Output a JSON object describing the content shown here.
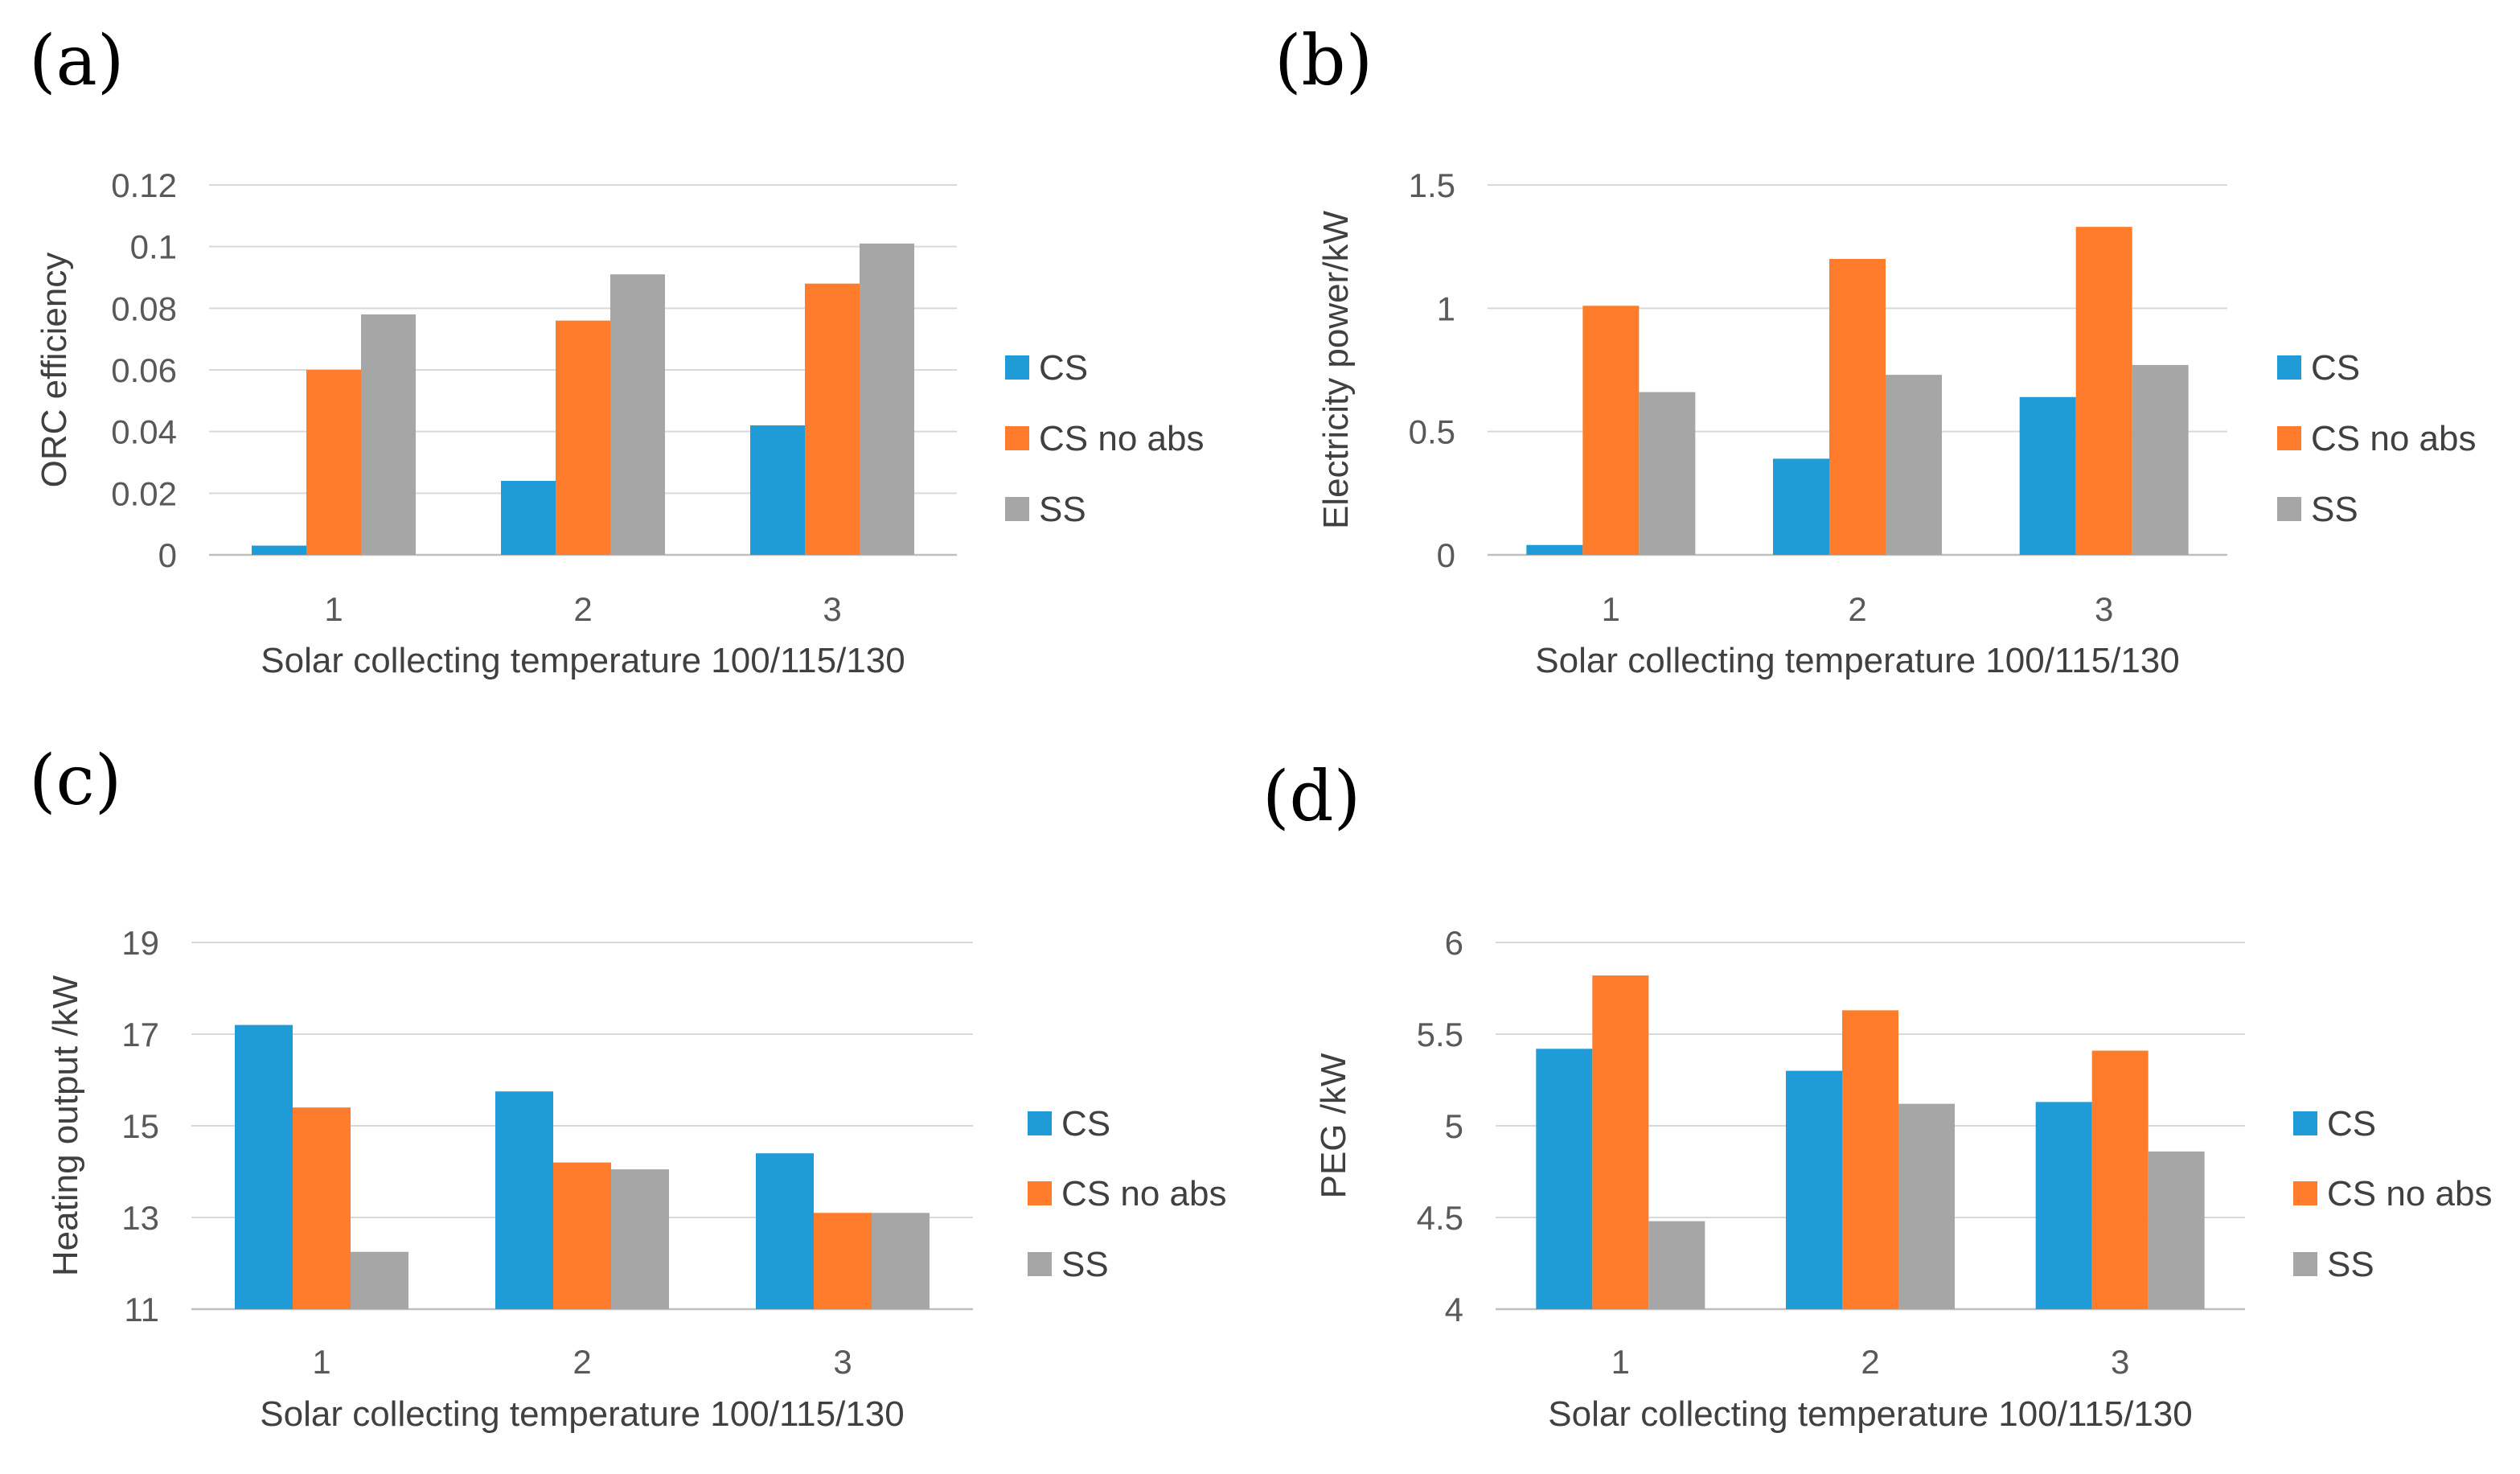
{
  "series_colors": {
    "CS": "#1f9bd7",
    "CS no abs": "#fe7c2b",
    "SS": "#a6a6a6"
  },
  "chart_data": [
    {
      "id": "a",
      "panel_label": "(a)",
      "type": "bar",
      "categories": [
        "1",
        "2",
        "3"
      ],
      "series": [
        {
          "name": "CS",
          "values": [
            0.003,
            0.024,
            0.042
          ]
        },
        {
          "name": "CS no abs",
          "values": [
            0.06,
            0.076,
            0.088
          ]
        },
        {
          "name": "SS",
          "values": [
            0.078,
            0.091,
            0.101
          ]
        }
      ],
      "xlabel": "Solar collecting temperature 100/115/130",
      "ylabel": "ORC efficiency",
      "ylim": [
        0,
        0.12
      ],
      "yticks": [
        "0",
        "0.02",
        "0.04",
        "0.06",
        "0.08",
        "0.1",
        "0.12"
      ],
      "legend": [
        "CS",
        "CS no abs",
        "SS"
      ],
      "grid": true
    },
    {
      "id": "b",
      "panel_label": "(b)",
      "type": "bar",
      "categories": [
        "1",
        "2",
        "3"
      ],
      "series": [
        {
          "name": "CS",
          "values": [
            0.04,
            0.39,
            0.64
          ]
        },
        {
          "name": "CS no abs",
          "values": [
            1.01,
            1.2,
            1.33
          ]
        },
        {
          "name": "SS",
          "values": [
            0.66,
            0.73,
            0.77
          ]
        }
      ],
      "xlabel": "Solar collecting temperature 100/115/130",
      "ylabel": "Electricity power/kW",
      "ylim": [
        0,
        1.5
      ],
      "yticks": [
        "0",
        "0.5",
        "1",
        "1.5"
      ],
      "legend": [
        "CS",
        "CS no abs",
        "SS"
      ],
      "grid": true
    },
    {
      "id": "c",
      "panel_label": "(c)",
      "type": "bar",
      "categories": [
        "1",
        "2",
        "3"
      ],
      "series": [
        {
          "name": "CS",
          "values": [
            17.2,
            15.75,
            14.4
          ]
        },
        {
          "name": "CS no abs",
          "values": [
            15.4,
            14.2,
            13.1
          ]
        },
        {
          "name": "SS",
          "values": [
            12.25,
            14.05,
            13.1
          ]
        }
      ],
      "xlabel": "Solar collecting temperature 100/115/130",
      "ylabel": "Heating output /kW",
      "ylim": [
        11,
        19
      ],
      "yticks": [
        "11",
        "13",
        "15",
        "17",
        "19"
      ],
      "legend": [
        "CS",
        "CS no abs",
        "SS"
      ],
      "grid": true
    },
    {
      "id": "d",
      "panel_label": "(d)",
      "type": "bar",
      "categories": [
        "1",
        "2",
        "3"
      ],
      "series": [
        {
          "name": "CS",
          "values": [
            5.42,
            5.3,
            5.13
          ]
        },
        {
          "name": "CS no abs",
          "values": [
            5.82,
            5.63,
            5.41
          ]
        },
        {
          "name": "SS",
          "values": [
            4.48,
            5.12,
            4.86
          ]
        }
      ],
      "xlabel": "Solar collecting temperature 100/115/130",
      "ylabel": "PEG /kW",
      "ylim": [
        4,
        6
      ],
      "yticks": [
        "4",
        "4.5",
        "5",
        "5.5",
        "6"
      ],
      "legend": [
        "CS",
        "CS no abs",
        "SS"
      ],
      "grid": true
    }
  ]
}
